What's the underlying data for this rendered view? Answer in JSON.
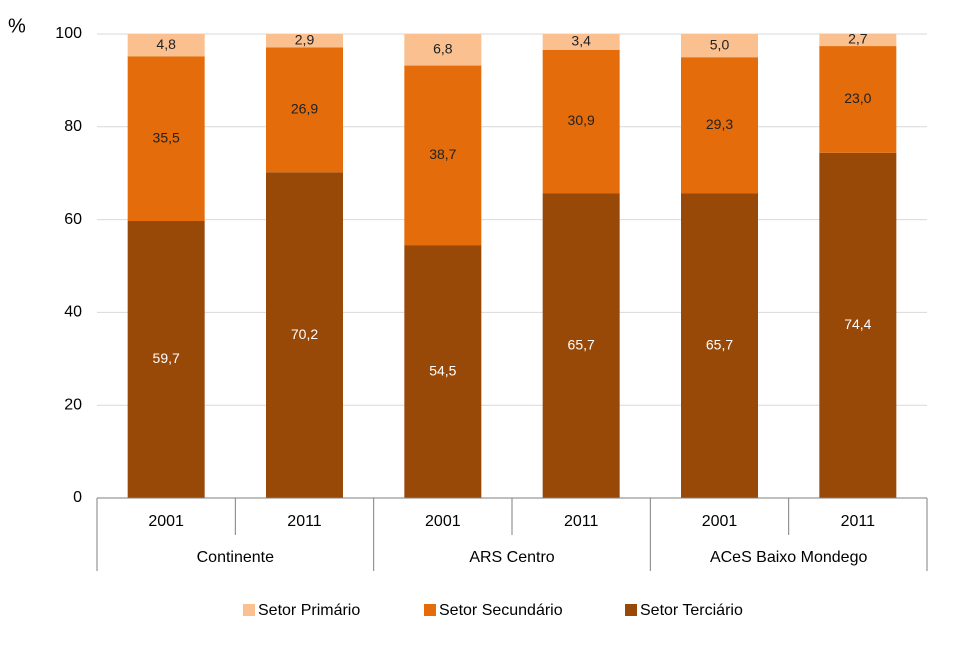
{
  "chart_data": {
    "type": "stacked-bar",
    "y_label": "%",
    "ylim": [
      0,
      100
    ],
    "yticks": [
      0,
      20,
      40,
      60,
      80,
      100
    ],
    "grid": true,
    "groups": [
      {
        "name": "Continente",
        "categories": [
          "2001",
          "2011"
        ]
      },
      {
        "name": "ARS Centro",
        "categories": [
          "2001",
          "2011"
        ]
      },
      {
        "name": "ACeS Baixo Mondego",
        "categories": [
          "2001",
          "2011"
        ]
      }
    ],
    "legend": "bottom",
    "series": [
      {
        "name": "Setor Primário",
        "color": "#fac08f",
        "values": [
          4.8,
          2.9,
          6.8,
          3.4,
          5.0,
          2.7
        ],
        "value_labels": [
          "4,8",
          "2,9",
          "6,8",
          "3,4",
          "5,0",
          "2,7"
        ]
      },
      {
        "name": "Setor Secundário",
        "color": "#e46c0a",
        "values": [
          35.5,
          26.9,
          38.7,
          30.9,
          29.3,
          23.0
        ],
        "value_labels": [
          "35,5",
          "26,9",
          "38,7",
          "30,9",
          "29,3",
          "23,0"
        ]
      },
      {
        "name": "Setor Terciário",
        "color": "#984807",
        "values": [
          59.7,
          70.2,
          54.5,
          65.7,
          65.7,
          74.4
        ],
        "value_labels": [
          "59,7",
          "70,2",
          "54,5",
          "65,7",
          "65,7",
          "74,4"
        ]
      }
    ]
  }
}
